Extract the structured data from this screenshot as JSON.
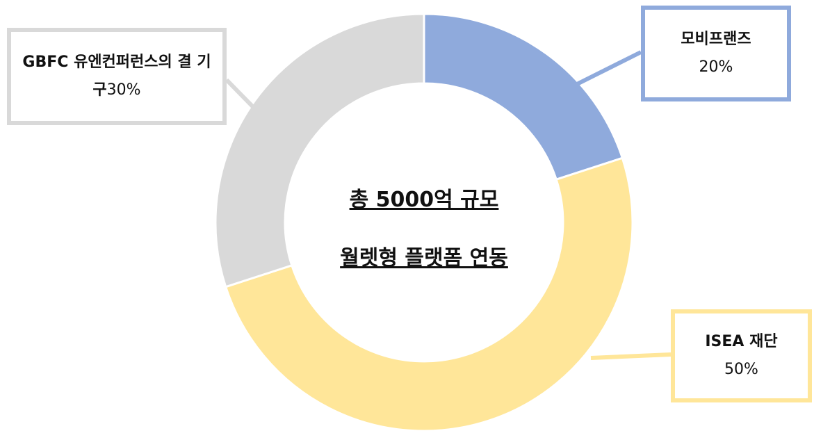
{
  "chart_data": {
    "type": "donut",
    "categories": [
      "모비프랜즈",
      "ISEA 재단",
      "GBFC 유엔컨퍼런스의 결 기구"
    ],
    "values": [
      20,
      50,
      30
    ],
    "value_labels": [
      "20%",
      "50%",
      "30%"
    ],
    "colors": [
      "#8faadc",
      "#ffe699",
      "#d9d9d9"
    ],
    "annotations": [
      "총 5000억 규모",
      "월렛형 플랫폼 연동"
    ]
  }
}
